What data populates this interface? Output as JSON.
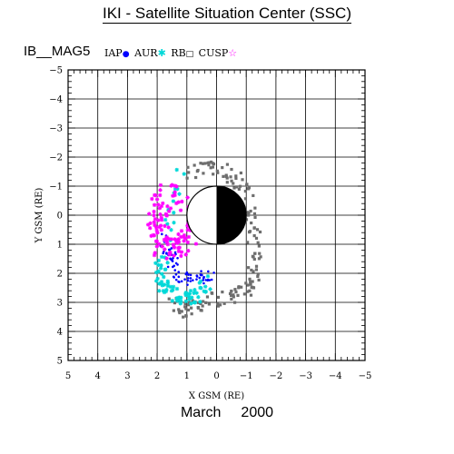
{
  "header": {
    "title": "IKI - Satellite Situation Center (SSC)"
  },
  "plot_name": "IB__MAG5",
  "legend": [
    {
      "label": "IAP",
      "symbol": "●",
      "color": "#0000ff",
      "icon": "dot-icon"
    },
    {
      "label": "AUR",
      "symbol": "✱",
      "color": "#00d8d8",
      "icon": "star-icon"
    },
    {
      "label": "RB",
      "symbol": "□",
      "color": "#000000",
      "icon": "square-icon"
    },
    {
      "label": "CUSP",
      "symbol": "☆",
      "color": "#ff00ff",
      "icon": "star-outline-icon"
    }
  ],
  "footer": {
    "month": "March",
    "year": "2000"
  },
  "colors": {
    "orbit_gray": "#6e6e6e",
    "iap_blue": "#0000ff",
    "aur_cyan": "#00d8d8",
    "cusp_magenta": "#ff00ff",
    "grid": "#000000"
  },
  "chart_data": {
    "type": "scatter",
    "title": "IKI - Satellite Situation Center (SSC)",
    "xlabel": "X GSM (RE)",
    "ylabel": "Y GSM (RE)",
    "xlim": [
      5,
      -5
    ],
    "ylim": [
      -5,
      5
    ],
    "x_ticks": [
      5,
      4,
      3,
      2,
      1,
      0,
      -1,
      -2,
      -3,
      -4,
      -5
    ],
    "y_ticks": [
      -5,
      -4,
      -3,
      -2,
      -1,
      0,
      1,
      2,
      3,
      4,
      5
    ],
    "grid": true,
    "legend_position": "top",
    "earth": {
      "center": [
        0,
        0
      ],
      "radius": 1,
      "day_side": "white",
      "night_side": "black"
    },
    "series": [
      {
        "name": "RB",
        "color": "#6e6e6e",
        "marker": "square",
        "description_points": [
          [
            0.8,
            -1.5
          ],
          [
            0.2,
            -1.7
          ],
          [
            -0.6,
            -1.3
          ],
          [
            -1.0,
            -0.6
          ],
          [
            -1.2,
            0.4
          ],
          [
            -1.3,
            1.6
          ],
          [
            -1.2,
            2.5
          ],
          [
            -0.5,
            2.8
          ],
          [
            0.3,
            3.0
          ],
          [
            1.0,
            3.3
          ],
          [
            1.6,
            3.1
          ]
        ]
      },
      {
        "name": "IAP",
        "color": "#0000ff",
        "marker": "dot",
        "description_points": [
          [
            1.8,
            0.6
          ],
          [
            1.6,
            1.4
          ],
          [
            1.4,
            1.9
          ],
          [
            1.1,
            2.2
          ],
          [
            0.6,
            2.2
          ],
          [
            0.2,
            2.0
          ]
        ]
      },
      {
        "name": "AUR",
        "color": "#00d8d8",
        "marker": "star",
        "description_points": [
          [
            1.2,
            -1.4
          ],
          [
            1.9,
            1.7
          ],
          [
            1.8,
            2.4
          ],
          [
            1.3,
            2.8
          ],
          [
            0.8,
            2.9
          ],
          [
            0.3,
            2.3
          ]
        ]
      },
      {
        "name": "CUSP",
        "color": "#ff00ff",
        "marker": "star",
        "description_points": [
          [
            1.6,
            -0.8
          ],
          [
            1.9,
            -0.3
          ],
          [
            2.0,
            0.4
          ],
          [
            1.9,
            1.0
          ],
          [
            1.5,
            1.2
          ],
          [
            1.0,
            0.9
          ],
          [
            0.8,
            0.2
          ],
          [
            1.1,
            -0.7
          ]
        ]
      }
    ]
  }
}
